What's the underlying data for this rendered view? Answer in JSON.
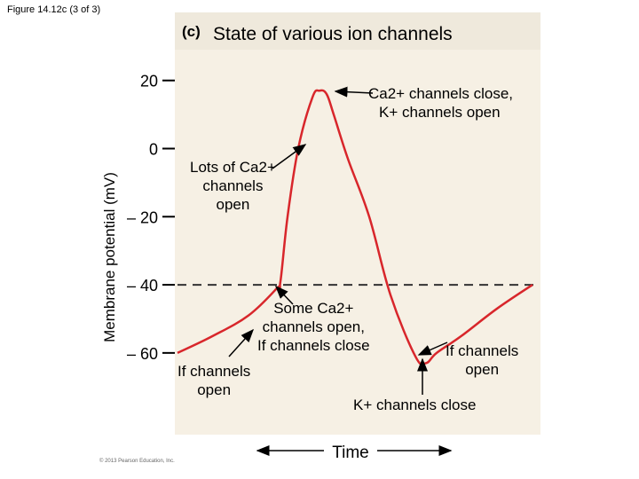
{
  "figure_label": "Figure 14.12c (3 of 3)",
  "panel_tag": "(c)",
  "panel_title": "State of various ion channels",
  "copyright": "© 2013 Pearson Education, Inc.",
  "chart_data": {
    "type": "line",
    "title": "State of various ion channels",
    "xlabel": "Time",
    "ylabel": "Membrane potential (mV)",
    "yticks": [
      20,
      0,
      -20,
      -40,
      -60
    ],
    "ytick_labels": [
      "20",
      "0",
      "– 20",
      "– 40",
      "– 60"
    ],
    "ylim": [
      -84,
      28
    ],
    "xlim": [
      0,
      100
    ],
    "threshold": -40,
    "series": [
      {
        "color": "#d8262b",
        "x": [
          0,
          10,
          20,
          28,
          29,
          31,
          34,
          38,
          40,
          42,
          44,
          48,
          54,
          60,
          67,
          70,
          73,
          80,
          90,
          100
        ],
        "y": [
          -60,
          -55,
          -49,
          -41,
          -39,
          -20,
          0,
          15,
          17,
          16,
          10,
          -3,
          -20,
          -43,
          -61,
          -63,
          -60,
          -55,
          -47,
          -40
        ]
      }
    ],
    "annotations": [
      {
        "lines": [
          "Ca2+ channels close,",
          "K+ channels open"
        ]
      },
      {
        "lines": [
          "Lots of Ca2+",
          "channels",
          "open"
        ]
      },
      {
        "lines": [
          "Some Ca2+",
          "channels open,",
          "If channels close"
        ]
      },
      {
        "lines": [
          "If channels",
          "open"
        ]
      },
      {
        "lines": [
          "If channels",
          "open"
        ]
      },
      {
        "lines": [
          "K+ channels close"
        ]
      }
    ]
  }
}
